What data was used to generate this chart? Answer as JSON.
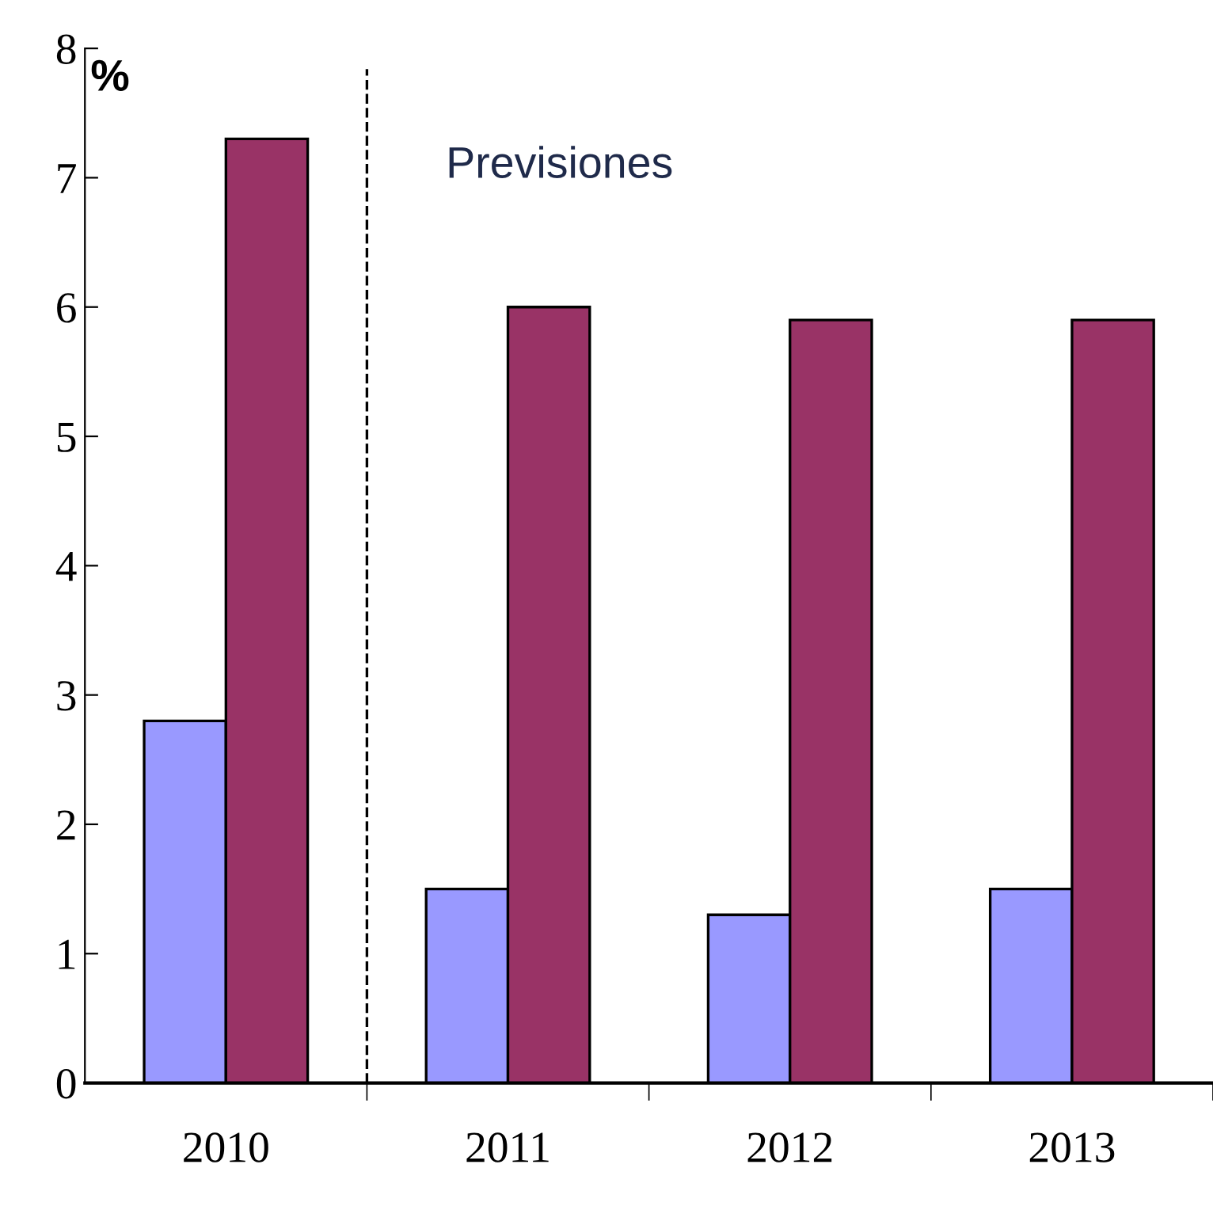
{
  "chart_data": {
    "type": "bar",
    "ylabel": "%",
    "categories": [
      "2010",
      "2011",
      "2012",
      "2013"
    ],
    "series": [
      {
        "color": "#9999ff",
        "values": [
          2.8,
          1.5,
          1.3,
          1.5
        ]
      },
      {
        "color": "#993366",
        "values": [
          7.3,
          6.0,
          5.9,
          5.9
        ]
      }
    ],
    "ylim": [
      0,
      8
    ],
    "yticks": [
      0,
      1,
      2,
      3,
      4,
      5,
      6,
      7,
      8
    ],
    "annotations": [
      "Previsiones"
    ],
    "grid": false,
    "legend": false
  }
}
